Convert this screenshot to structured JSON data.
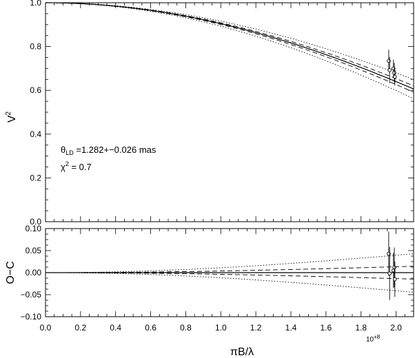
{
  "chart_data": [
    {
      "type": "line",
      "panel": "visibility",
      "ylabel_main": "V",
      "ylabel_sup": "2",
      "xlim": [
        0.0,
        2.1
      ],
      "ylim": [
        0.0,
        1.0
      ],
      "y_ticks": [
        "0.0",
        "0.2",
        "0.4",
        "0.6",
        "0.8",
        "1.0"
      ],
      "grid": false,
      "annotation": {
        "theta_symbol": "θ",
        "theta_sub": "LD",
        "theta_text": " =1.282+−0.026 mas",
        "chi_symbol": "χ",
        "chi_sup": "2",
        "chi_text": " = 0.7"
      },
      "model": {
        "theta_mas": 1.282,
        "sigma_mas": 0.026,
        "series": [
          {
            "style": "solid",
            "theta_offset_sigma": 0
          },
          {
            "style": "dashed",
            "theta_offset_sigma": 1
          },
          {
            "style": "dashed",
            "theta_offset_sigma": -1
          },
          {
            "style": "dotted",
            "theta_offset_sigma": 3
          },
          {
            "style": "dotted",
            "theta_offset_sigma": -3
          }
        ]
      },
      "points": [
        {
          "x": 1.958,
          "y": 0.735,
          "err": 0.05
        },
        {
          "x": 1.963,
          "y": 0.692,
          "err": 0.06
        },
        {
          "x": 1.985,
          "y": 0.7,
          "err": 0.04
        },
        {
          "x": 1.99,
          "y": 0.68,
          "err": 0.045
        },
        {
          "x": 1.993,
          "y": 0.662,
          "err": 0.04
        }
      ]
    },
    {
      "type": "line",
      "panel": "residuals",
      "ylabel": "O−C",
      "xlabel": "πB/λ",
      "x_multiplier": "10",
      "x_multiplier_exp": "+8",
      "xlim": [
        0.0,
        2.1
      ],
      "ylim": [
        -0.1,
        0.1
      ],
      "x_ticks": [
        "0.0",
        "0.2",
        "0.4",
        "0.6",
        "0.8",
        "1.0",
        "1.2",
        "1.4",
        "1.6",
        "1.8",
        "2.0"
      ],
      "y_ticks": [
        "−0.10",
        "−0.05",
        "0.00",
        "0.05",
        "0.10"
      ],
      "grid": false,
      "points": [
        {
          "x": 1.958,
          "y": 0.043,
          "err": 0.05
        },
        {
          "x": 1.963,
          "y": -0.002,
          "err": 0.06
        },
        {
          "x": 1.985,
          "y": 0.005,
          "err": 0.04
        },
        {
          "x": 1.99,
          "y": 0.012,
          "err": 0.045
        },
        {
          "x": 1.993,
          "y": -0.015,
          "err": 0.04
        }
      ]
    }
  ]
}
